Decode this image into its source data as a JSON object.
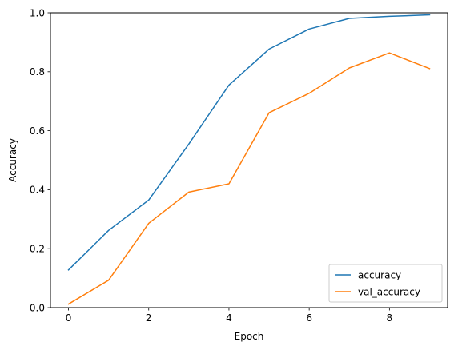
{
  "chart_data": {
    "type": "line",
    "xlabel": "Epoch",
    "ylabel": "Accuracy",
    "xlim": [
      -0.45,
      9.45
    ],
    "ylim": [
      0,
      1
    ],
    "xticks": [
      0,
      2,
      4,
      6,
      8
    ],
    "yticks": [
      0.0,
      0.2,
      0.4,
      0.6,
      0.8,
      1.0
    ],
    "ytick_labels": [
      "0.0",
      "0.2",
      "0.4",
      "0.6",
      "0.8",
      "1.0"
    ],
    "grid": false,
    "legend_position": "lower right",
    "x": [
      0,
      1,
      2,
      3,
      4,
      5,
      6,
      7,
      8,
      9
    ],
    "series": [
      {
        "name": "accuracy",
        "color": "#1f77b4",
        "values": [
          0.128,
          0.262,
          0.365,
          0.555,
          0.755,
          0.877,
          0.945,
          0.981,
          0.988,
          0.993
        ]
      },
      {
        "name": "val_accuracy",
        "color": "#ff7f0e",
        "values": [
          0.012,
          0.093,
          0.286,
          0.392,
          0.42,
          0.661,
          0.727,
          0.813,
          0.864,
          0.811
        ]
      }
    ]
  }
}
